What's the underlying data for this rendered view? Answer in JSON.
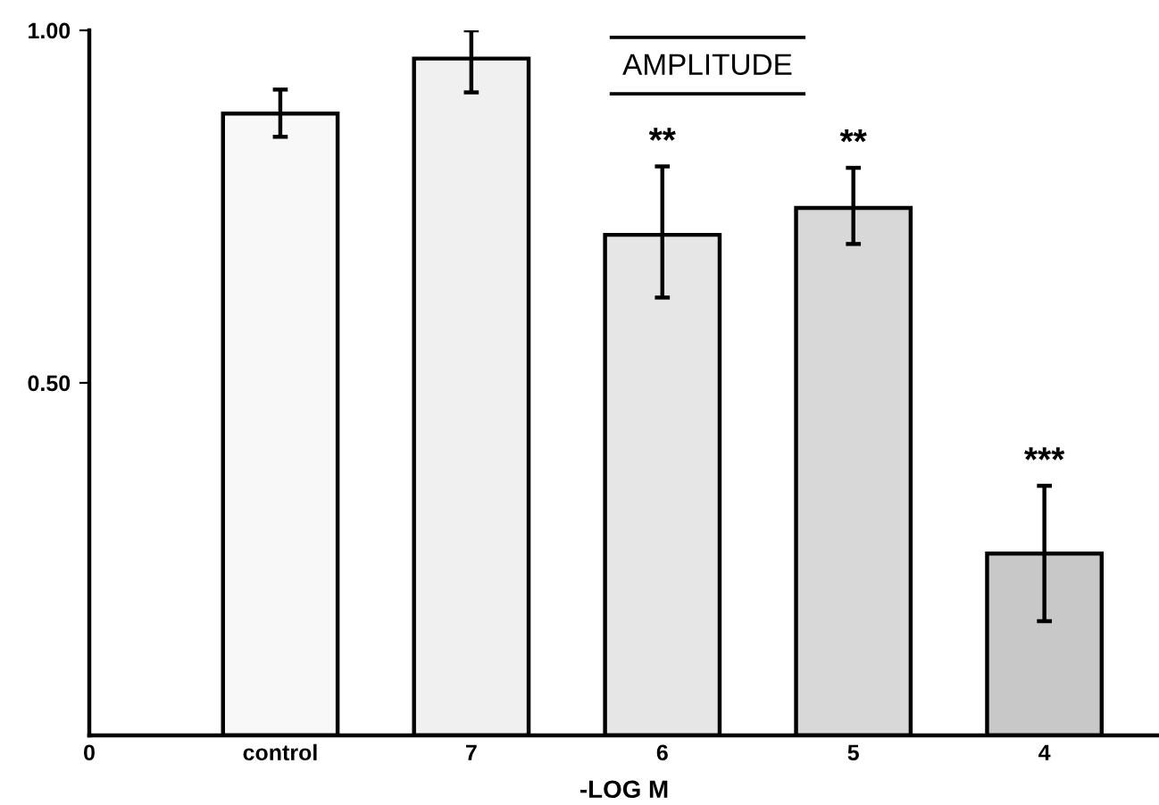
{
  "chart_data": {
    "type": "bar",
    "title": "AMPLITUDE",
    "xlabel": "-LOG M",
    "categories": [
      "0",
      "control",
      "7",
      "6",
      "5",
      "4"
    ],
    "values": [
      null,
      0.882,
      0.96,
      0.71,
      0.748,
      0.258
    ],
    "errors": [
      null,
      [
        0.849,
        0.916
      ],
      [
        0.912,
        1.0
      ],
      [
        0.621,
        0.807
      ],
      [
        0.697,
        0.805
      ],
      [
        0.162,
        0.354
      ]
    ],
    "colors": [
      "#ffffff",
      "#f8f8f8",
      "#f0f0f0",
      "#e6e6e6",
      "#d8d8d8",
      "#c8c8c8"
    ],
    "ylim": [
      0,
      1.0
    ],
    "yticks": [
      {
        "value": 0.5,
        "label": "0.50"
      },
      {
        "value": 1.0,
        "label": "1.00"
      }
    ],
    "grid": false,
    "legend": false,
    "annotations": [
      {
        "text": "**",
        "x": "6",
        "y": 0.807
      },
      {
        "text": "**",
        "x": "5",
        "y": 0.805
      },
      {
        "text": "***",
        "x": "4",
        "y": 0.354
      }
    ]
  }
}
